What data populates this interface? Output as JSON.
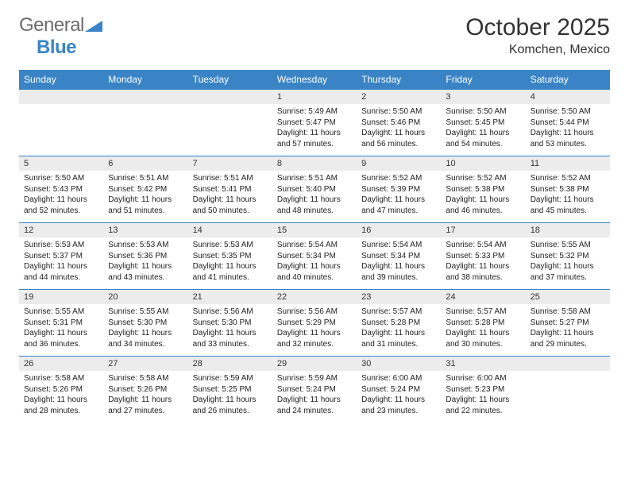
{
  "brand": {
    "part1": "General",
    "part2": "Blue"
  },
  "title": "October 2025",
  "location": "Komchen, Mexico",
  "colors": {
    "header_bg": "#3a84c6",
    "header_text": "#ffffff",
    "daynum_bg": "#ececec",
    "rule": "#3a84c6",
    "text": "#222222",
    "brand_gray": "#6b6b6b",
    "brand_blue": "#3a84c6",
    "page_bg": "#ffffff"
  },
  "typography": {
    "title_fontsize": 30,
    "location_fontsize": 16,
    "dayheader_fontsize": 12,
    "daynum_fontsize": 11,
    "body_fontsize": 10
  },
  "day_headers": [
    "Sunday",
    "Monday",
    "Tuesday",
    "Wednesday",
    "Thursday",
    "Friday",
    "Saturday"
  ],
  "weeks": [
    [
      null,
      null,
      null,
      {
        "n": "1",
        "sunrise": "5:49 AM",
        "sunset": "5:47 PM",
        "day_h": "11",
        "day_m": "57"
      },
      {
        "n": "2",
        "sunrise": "5:50 AM",
        "sunset": "5:46 PM",
        "day_h": "11",
        "day_m": "56"
      },
      {
        "n": "3",
        "sunrise": "5:50 AM",
        "sunset": "5:45 PM",
        "day_h": "11",
        "day_m": "54"
      },
      {
        "n": "4",
        "sunrise": "5:50 AM",
        "sunset": "5:44 PM",
        "day_h": "11",
        "day_m": "53"
      }
    ],
    [
      {
        "n": "5",
        "sunrise": "5:50 AM",
        "sunset": "5:43 PM",
        "day_h": "11",
        "day_m": "52"
      },
      {
        "n": "6",
        "sunrise": "5:51 AM",
        "sunset": "5:42 PM",
        "day_h": "11",
        "day_m": "51"
      },
      {
        "n": "7",
        "sunrise": "5:51 AM",
        "sunset": "5:41 PM",
        "day_h": "11",
        "day_m": "50"
      },
      {
        "n": "8",
        "sunrise": "5:51 AM",
        "sunset": "5:40 PM",
        "day_h": "11",
        "day_m": "48"
      },
      {
        "n": "9",
        "sunrise": "5:52 AM",
        "sunset": "5:39 PM",
        "day_h": "11",
        "day_m": "47"
      },
      {
        "n": "10",
        "sunrise": "5:52 AM",
        "sunset": "5:38 PM",
        "day_h": "11",
        "day_m": "46"
      },
      {
        "n": "11",
        "sunrise": "5:52 AM",
        "sunset": "5:38 PM",
        "day_h": "11",
        "day_m": "45"
      }
    ],
    [
      {
        "n": "12",
        "sunrise": "5:53 AM",
        "sunset": "5:37 PM",
        "day_h": "11",
        "day_m": "44"
      },
      {
        "n": "13",
        "sunrise": "5:53 AM",
        "sunset": "5:36 PM",
        "day_h": "11",
        "day_m": "43"
      },
      {
        "n": "14",
        "sunrise": "5:53 AM",
        "sunset": "5:35 PM",
        "day_h": "11",
        "day_m": "41"
      },
      {
        "n": "15",
        "sunrise": "5:54 AM",
        "sunset": "5:34 PM",
        "day_h": "11",
        "day_m": "40"
      },
      {
        "n": "16",
        "sunrise": "5:54 AM",
        "sunset": "5:34 PM",
        "day_h": "11",
        "day_m": "39"
      },
      {
        "n": "17",
        "sunrise": "5:54 AM",
        "sunset": "5:33 PM",
        "day_h": "11",
        "day_m": "38"
      },
      {
        "n": "18",
        "sunrise": "5:55 AM",
        "sunset": "5:32 PM",
        "day_h": "11",
        "day_m": "37"
      }
    ],
    [
      {
        "n": "19",
        "sunrise": "5:55 AM",
        "sunset": "5:31 PM",
        "day_h": "11",
        "day_m": "36"
      },
      {
        "n": "20",
        "sunrise": "5:55 AM",
        "sunset": "5:30 PM",
        "day_h": "11",
        "day_m": "34"
      },
      {
        "n": "21",
        "sunrise": "5:56 AM",
        "sunset": "5:30 PM",
        "day_h": "11",
        "day_m": "33"
      },
      {
        "n": "22",
        "sunrise": "5:56 AM",
        "sunset": "5:29 PM",
        "day_h": "11",
        "day_m": "32"
      },
      {
        "n": "23",
        "sunrise": "5:57 AM",
        "sunset": "5:28 PM",
        "day_h": "11",
        "day_m": "31"
      },
      {
        "n": "24",
        "sunrise": "5:57 AM",
        "sunset": "5:28 PM",
        "day_h": "11",
        "day_m": "30"
      },
      {
        "n": "25",
        "sunrise": "5:58 AM",
        "sunset": "5:27 PM",
        "day_h": "11",
        "day_m": "29"
      }
    ],
    [
      {
        "n": "26",
        "sunrise": "5:58 AM",
        "sunset": "5:26 PM",
        "day_h": "11",
        "day_m": "28"
      },
      {
        "n": "27",
        "sunrise": "5:58 AM",
        "sunset": "5:26 PM",
        "day_h": "11",
        "day_m": "27"
      },
      {
        "n": "28",
        "sunrise": "5:59 AM",
        "sunset": "5:25 PM",
        "day_h": "11",
        "day_m": "26"
      },
      {
        "n": "29",
        "sunrise": "5:59 AM",
        "sunset": "5:24 PM",
        "day_h": "11",
        "day_m": "24"
      },
      {
        "n": "30",
        "sunrise": "6:00 AM",
        "sunset": "5:24 PM",
        "day_h": "11",
        "day_m": "23"
      },
      {
        "n": "31",
        "sunrise": "6:00 AM",
        "sunset": "5:23 PM",
        "day_h": "11",
        "day_m": "22"
      },
      null
    ]
  ],
  "labels": {
    "sunrise_prefix": "Sunrise: ",
    "sunset_prefix": "Sunset: ",
    "daylight_line1_prefix": "Daylight: ",
    "daylight_line1_suffix": " hours",
    "daylight_line2_prefix": "and ",
    "daylight_line2_suffix": " minutes."
  }
}
